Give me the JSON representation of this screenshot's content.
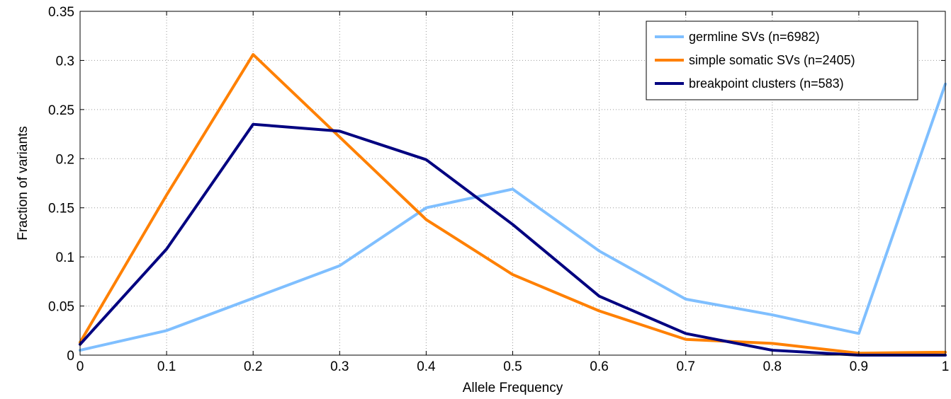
{
  "chart_data": {
    "type": "line",
    "title": "",
    "xlabel": "Allele Frequency",
    "ylabel": "Fraction of variants",
    "xlim": [
      0,
      1
    ],
    "ylim": [
      0,
      0.35
    ],
    "grid": true,
    "legend_position": "top-right",
    "x": [
      0,
      0.1,
      0.2,
      0.3,
      0.4,
      0.5,
      0.6,
      0.7,
      0.8,
      0.9,
      1
    ],
    "x_tick_labels": [
      "0",
      "0.1",
      "0.2",
      "0.3",
      "0.4",
      "0.5",
      "0.6",
      "0.7",
      "0.8",
      "0.9",
      "1"
    ],
    "y_ticks": [
      0,
      0.05,
      0.1,
      0.15,
      0.2,
      0.25,
      0.3,
      0.35
    ],
    "y_tick_labels": [
      "0",
      "0.05",
      "0.1",
      "0.15",
      "0.2",
      "0.25",
      "0.3",
      "0.35"
    ],
    "series": [
      {
        "name": "germline SVs (n=6982)",
        "color": "#7fbfff",
        "values": [
          0.005,
          0.025,
          0.058,
          0.091,
          0.15,
          0.169,
          0.106,
          0.057,
          0.041,
          0.022,
          0.276
        ]
      },
      {
        "name": "simple somatic SVs (n=2405)",
        "color": "#ff8000",
        "values": [
          0.013,
          0.163,
          0.306,
          0.222,
          0.138,
          0.082,
          0.045,
          0.016,
          0.012,
          0.002,
          0.003
        ]
      },
      {
        "name": "breakpoint clusters (n=583)",
        "color": "#000080",
        "values": [
          0.011,
          0.108,
          0.235,
          0.228,
          0.199,
          0.133,
          0.06,
          0.022,
          0.005,
          0.0,
          0.0
        ]
      }
    ]
  }
}
